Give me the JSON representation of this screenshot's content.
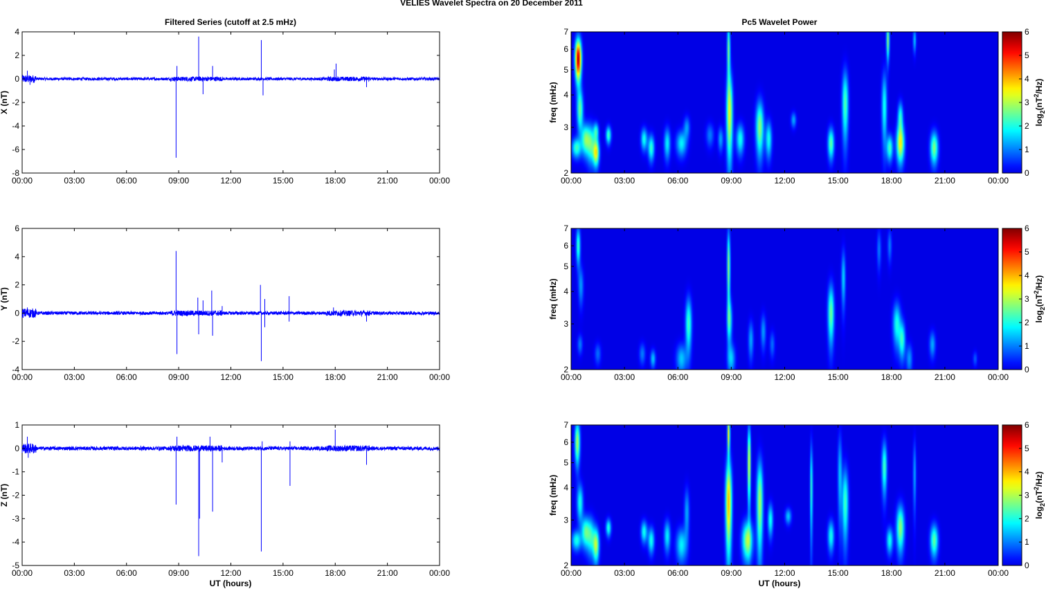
{
  "figure": {
    "title": "VELIES Wavelet Spectra on 20 December  2011",
    "left_title": "Filtered Series (cutoff at 2.5 mHz)",
    "right_title": "Pc5 Wavelet Power",
    "xlabel": "UT (hours)",
    "freq_label": "freq (mHz)",
    "colorbar_label_main": "log",
    "colorbar_label_sub": "2",
    "colorbar_label_tail1": "(nT",
    "colorbar_label_sup": "2",
    "colorbar_label_tail2": "/Hz)"
  },
  "chart_data": [
    {
      "type": "line",
      "ylabel": "X (nT)",
      "xticks": [
        "00:00",
        "03:00",
        "06:00",
        "09:00",
        "12:00",
        "15:00",
        "18:00",
        "21:00",
        "00:00"
      ],
      "xlim": [
        0,
        24
      ],
      "ylim": [
        -8,
        4
      ],
      "yticks": [
        -8,
        -6,
        -4,
        -2,
        0,
        2,
        4
      ],
      "color": "#0000ff",
      "noise_amplitude": 0.12,
      "spikes": [
        [
          0.3,
          0.7
        ],
        [
          0.45,
          -0.5
        ],
        [
          8.85,
          -6.7
        ],
        [
          8.9,
          1.1
        ],
        [
          10.15,
          3.6
        ],
        [
          10.4,
          -1.3
        ],
        [
          10.95,
          1.1
        ],
        [
          13.75,
          3.3
        ],
        [
          13.85,
          -1.4
        ],
        [
          17.95,
          0.8
        ],
        [
          18.05,
          1.3
        ],
        [
          19.8,
          -0.7
        ]
      ]
    },
    {
      "type": "line",
      "ylabel": "Y (nT)",
      "xticks": [
        "00:00",
        "03:00",
        "06:00",
        "09:00",
        "12:00",
        "15:00",
        "18:00",
        "21:00",
        "00:00"
      ],
      "xlim": [
        0,
        24
      ],
      "ylim": [
        -4,
        6
      ],
      "yticks": [
        -4,
        -2,
        0,
        2,
        4,
        6
      ],
      "color": "#0000ff",
      "noise_amplitude": 0.12,
      "spikes": [
        [
          0.3,
          0.4
        ],
        [
          8.85,
          4.4
        ],
        [
          8.9,
          -2.9
        ],
        [
          10.1,
          1.1
        ],
        [
          10.15,
          -1.5
        ],
        [
          10.4,
          0.9
        ],
        [
          10.9,
          1.6
        ],
        [
          10.95,
          -1.6
        ],
        [
          11.5,
          0.5
        ],
        [
          13.7,
          2.0
        ],
        [
          13.75,
          -3.4
        ],
        [
          13.95,
          1.0
        ],
        [
          13.95,
          -1.0
        ],
        [
          15.35,
          1.2
        ],
        [
          15.35,
          -0.6
        ],
        [
          17.9,
          0.4
        ],
        [
          19.8,
          -0.6
        ]
      ]
    },
    {
      "type": "line",
      "ylabel": "Z (nT)",
      "xticks": [
        "00:00",
        "03:00",
        "06:00",
        "09:00",
        "12:00",
        "15:00",
        "18:00",
        "21:00",
        "00:00"
      ],
      "xlim": [
        0,
        24
      ],
      "ylim": [
        -5,
        1
      ],
      "yticks": [
        -5,
        -4,
        -3,
        -2,
        -1,
        0,
        1
      ],
      "color": "#0000ff",
      "noise_amplitude": 0.08,
      "spikes": [
        [
          0.3,
          0.5
        ],
        [
          0.35,
          -0.4
        ],
        [
          8.85,
          -2.4
        ],
        [
          8.9,
          0.5
        ],
        [
          10.15,
          -4.6
        ],
        [
          10.2,
          -3.0
        ],
        [
          10.8,
          0.5
        ],
        [
          10.95,
          -2.7
        ],
        [
          11.5,
          -0.6
        ],
        [
          13.75,
          -4.4
        ],
        [
          13.8,
          0.3
        ],
        [
          15.4,
          -1.6
        ],
        [
          15.4,
          0.3
        ],
        [
          18.0,
          0.8
        ],
        [
          19.8,
          -0.7
        ]
      ]
    },
    {
      "type": "heatmap",
      "xticks": [
        "00:00",
        "03:00",
        "06:00",
        "09:00",
        "12:00",
        "15:00",
        "18:00",
        "21:00",
        "00:00"
      ],
      "xlim": [
        0,
        24
      ],
      "ylim": [
        2,
        7
      ],
      "yscale": "log",
      "yticks": [
        2,
        3,
        4,
        5,
        6,
        7
      ],
      "colorbar": {
        "range": [
          0,
          6
        ],
        "ticks": [
          0,
          1,
          2,
          3,
          4,
          5,
          6
        ],
        "colormap": "jet"
      },
      "blobs": [
        [
          0.4,
          5.5,
          0.12,
          0.7,
          5.8
        ],
        [
          0.5,
          3.5,
          0.12,
          0.45,
          2.5
        ],
        [
          0.3,
          2.5,
          0.18,
          0.15,
          2.2
        ],
        [
          0.8,
          2.7,
          0.15,
          0.25,
          2.5
        ],
        [
          1.1,
          2.6,
          0.15,
          0.3,
          2.3
        ],
        [
          1.4,
          2.4,
          0.12,
          0.2,
          3.5
        ],
        [
          1.4,
          2.9,
          0.1,
          0.15,
          2.0
        ],
        [
          2.1,
          2.8,
          0.1,
          0.15,
          2.3
        ],
        [
          4.1,
          2.7,
          0.12,
          0.18,
          2.0
        ],
        [
          4.5,
          2.5,
          0.12,
          0.2,
          2.2
        ],
        [
          5.4,
          2.6,
          0.12,
          0.25,
          1.8
        ],
        [
          6.2,
          2.6,
          0.2,
          0.2,
          1.8
        ],
        [
          6.5,
          3.0,
          0.12,
          0.2,
          1.2
        ],
        [
          7.8,
          2.8,
          0.15,
          0.2,
          1.0
        ],
        [
          8.4,
          2.7,
          0.1,
          0.2,
          1.3
        ],
        [
          8.9,
          3.4,
          0.12,
          0.9,
          3.4
        ],
        [
          8.85,
          6.0,
          0.06,
          1.0,
          2.6
        ],
        [
          9.5,
          2.7,
          0.15,
          0.25,
          2.0
        ],
        [
          10.6,
          3.0,
          0.15,
          0.5,
          2.8
        ],
        [
          11.1,
          2.7,
          0.12,
          0.3,
          2.0
        ],
        [
          12.5,
          3.2,
          0.1,
          0.15,
          1.3
        ],
        [
          14.6,
          2.6,
          0.12,
          0.25,
          2.5
        ],
        [
          15.4,
          3.7,
          0.12,
          0.8,
          2.4
        ],
        [
          17.6,
          3.6,
          0.1,
          0.8,
          2.0
        ],
        [
          17.8,
          6.5,
          0.06,
          0.8,
          2.7
        ],
        [
          17.9,
          2.5,
          0.12,
          0.2,
          2.3
        ],
        [
          18.5,
          2.6,
          0.15,
          0.3,
          3.5
        ],
        [
          18.5,
          3.3,
          0.1,
          0.3,
          2.0
        ],
        [
          19.3,
          6.5,
          0.06,
          0.5,
          1.5
        ],
        [
          20.4,
          2.5,
          0.15,
          0.25,
          2.7
        ]
      ]
    },
    {
      "type": "heatmap",
      "xticks": [
        "00:00",
        "03:00",
        "06:00",
        "09:00",
        "12:00",
        "15:00",
        "18:00",
        "21:00",
        "00:00"
      ],
      "xlim": [
        0,
        24
      ],
      "ylim": [
        2,
        7
      ],
      "yscale": "log",
      "yticks": [
        2,
        3,
        4,
        5,
        6,
        7
      ],
      "colorbar": {
        "range": [
          0,
          6
        ],
        "ticks": [
          0,
          1,
          2,
          3,
          4,
          5,
          6
        ],
        "colormap": "jet"
      },
      "blobs": [
        [
          0.4,
          6.0,
          0.08,
          0.7,
          2.3
        ],
        [
          0.55,
          4.2,
          0.1,
          0.5,
          1.2
        ],
        [
          0.5,
          2.5,
          0.1,
          0.15,
          1.0
        ],
        [
          1.5,
          2.3,
          0.12,
          0.15,
          0.9
        ],
        [
          4.0,
          2.3,
          0.12,
          0.15,
          1.0
        ],
        [
          4.6,
          2.2,
          0.1,
          0.12,
          1.5
        ],
        [
          6.2,
          2.2,
          0.2,
          0.2,
          1.5
        ],
        [
          6.6,
          3.0,
          0.12,
          0.5,
          2.3
        ],
        [
          8.85,
          5.0,
          0.06,
          1.2,
          2.8
        ],
        [
          8.9,
          3.1,
          0.1,
          0.4,
          2.0
        ],
        [
          9.0,
          2.2,
          0.15,
          0.2,
          1.5
        ],
        [
          10.1,
          2.6,
          0.1,
          0.3,
          1.3
        ],
        [
          10.8,
          2.8,
          0.1,
          0.3,
          1.2
        ],
        [
          11.3,
          2.5,
          0.1,
          0.2,
          0.9
        ],
        [
          14.6,
          3.3,
          0.12,
          0.6,
          2.6
        ],
        [
          15.3,
          4.5,
          0.08,
          0.8,
          1.6
        ],
        [
          17.3,
          5.8,
          0.08,
          0.7,
          1.0
        ],
        [
          17.9,
          6.0,
          0.08,
          0.6,
          1.0
        ],
        [
          18.3,
          3.0,
          0.15,
          0.4,
          2.0
        ],
        [
          18.6,
          2.6,
          0.12,
          0.3,
          2.1
        ],
        [
          19.0,
          2.2,
          0.12,
          0.2,
          1.2
        ],
        [
          20.3,
          2.5,
          0.12,
          0.2,
          1.3
        ],
        [
          22.7,
          2.2,
          0.08,
          0.1,
          0.8
        ]
      ]
    },
    {
      "type": "heatmap",
      "xticks": [
        "00:00",
        "03:00",
        "06:00",
        "09:00",
        "12:00",
        "15:00",
        "18:00",
        "21:00",
        "00:00"
      ],
      "xlim": [
        0,
        24
      ],
      "ylim": [
        2,
        7
      ],
      "yscale": "log",
      "yticks": [
        2,
        3,
        4,
        5,
        6,
        7
      ],
      "colorbar": {
        "range": [
          0,
          6
        ],
        "ticks": [
          0,
          1,
          2,
          3,
          4,
          5,
          6
        ],
        "colormap": "jet"
      },
      "blobs": [
        [
          0.35,
          6.0,
          0.1,
          0.8,
          3.0
        ],
        [
          0.5,
          3.5,
          0.12,
          0.4,
          2.0
        ],
        [
          0.3,
          2.5,
          0.18,
          0.15,
          2.0
        ],
        [
          0.8,
          2.7,
          0.15,
          0.25,
          2.3
        ],
        [
          1.1,
          2.6,
          0.15,
          0.3,
          2.0
        ],
        [
          1.4,
          2.4,
          0.12,
          0.25,
          3.0
        ],
        [
          2.1,
          2.8,
          0.1,
          0.15,
          2.1
        ],
        [
          4.1,
          2.7,
          0.12,
          0.18,
          2.0
        ],
        [
          4.5,
          2.5,
          0.12,
          0.2,
          2.0
        ],
        [
          5.4,
          2.6,
          0.12,
          0.25,
          1.8
        ],
        [
          6.2,
          2.4,
          0.2,
          0.25,
          1.8
        ],
        [
          6.5,
          3.2,
          0.1,
          0.5,
          1.3
        ],
        [
          8.85,
          3.5,
          0.12,
          1.0,
          4.0
        ],
        [
          8.85,
          6.5,
          0.05,
          0.8,
          3.5
        ],
        [
          9.9,
          2.5,
          0.2,
          0.3,
          3.0
        ],
        [
          10.0,
          5.0,
          0.06,
          1.2,
          3.5
        ],
        [
          10.6,
          3.5,
          0.12,
          1.0,
          3.0
        ],
        [
          11.2,
          3.0,
          0.1,
          0.3,
          2.0
        ],
        [
          12.2,
          3.1,
          0.12,
          0.15,
          1.5
        ],
        [
          13.5,
          4.0,
          0.05,
          1.2,
          2.3
        ],
        [
          14.6,
          2.6,
          0.12,
          0.25,
          2.0
        ],
        [
          15.1,
          4.5,
          0.08,
          1.2,
          1.5
        ],
        [
          15.4,
          3.5,
          0.12,
          0.8,
          2.3
        ],
        [
          17.6,
          4.8,
          0.1,
          0.8,
          2.3
        ],
        [
          17.9,
          2.5,
          0.12,
          0.2,
          2.0
        ],
        [
          18.5,
          2.8,
          0.15,
          0.4,
          2.8
        ],
        [
          19.3,
          4.5,
          0.06,
          1.0,
          1.3
        ],
        [
          20.4,
          2.5,
          0.15,
          0.25,
          2.5
        ]
      ]
    }
  ]
}
